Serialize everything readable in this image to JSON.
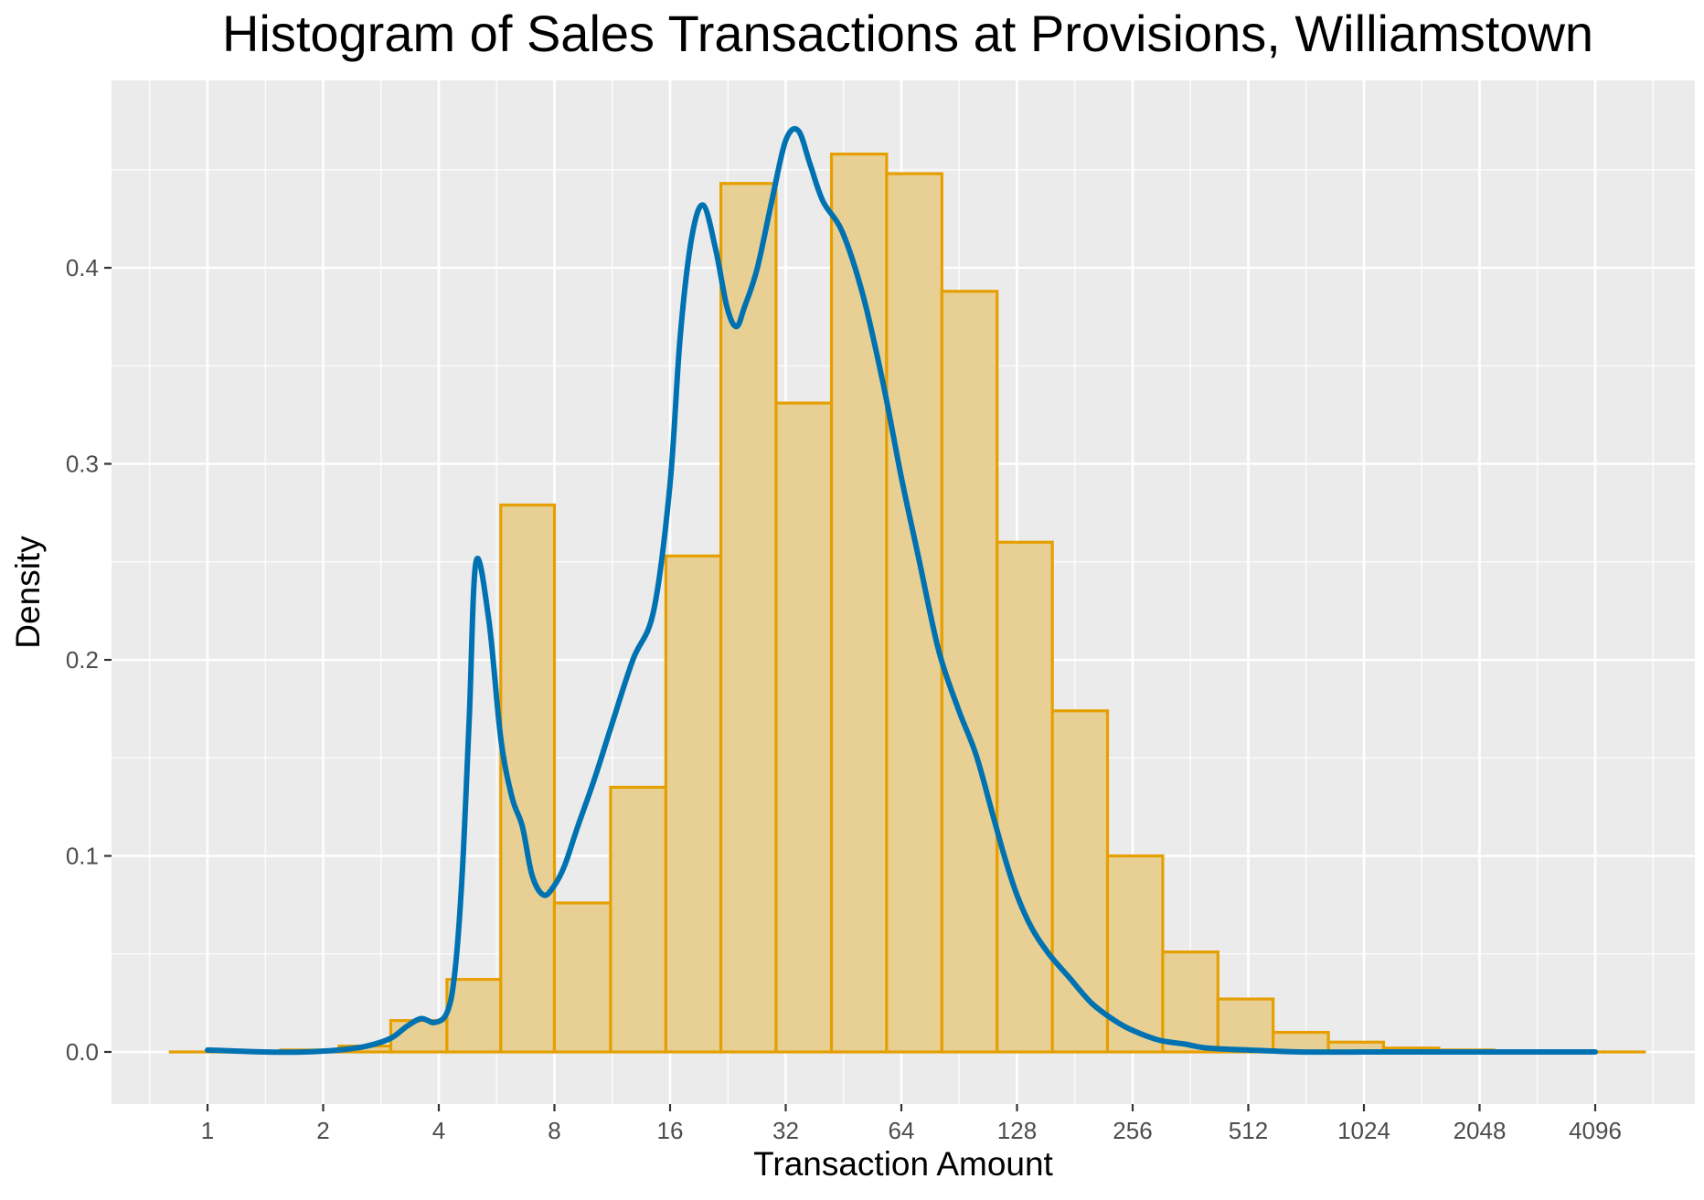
{
  "chart_data": {
    "type": "bar",
    "title": "Histogram of Sales Transactions at Provisions, Williamstown",
    "xlabel": "Transaction Amount",
    "ylabel": "Density",
    "x_scale": "log2",
    "x_ticks": [
      "1",
      "2",
      "4",
      "8",
      "16",
      "32",
      "64",
      "128",
      "256",
      "512",
      "1024",
      "2048",
      "4096"
    ],
    "y_ticks": [
      "0.0",
      "0.1",
      "0.2",
      "0.3",
      "0.4"
    ],
    "ylim": [
      0,
      0.48
    ],
    "grid": true,
    "series": [
      {
        "type": "bar",
        "bins": [
          {
            "start": 0.8,
            "end": 1.1,
            "density": 0.0
          },
          {
            "start": 1.1,
            "end": 1.55,
            "density": 0.0
          },
          {
            "start": 1.55,
            "end": 2.2,
            "density": 0.001
          },
          {
            "start": 2.2,
            "end": 3.0,
            "density": 0.003
          },
          {
            "start": 3.0,
            "end": 4.2,
            "density": 0.016
          },
          {
            "start": 4.2,
            "end": 5.8,
            "density": 0.037
          },
          {
            "start": 5.8,
            "end": 8.0,
            "density": 0.279
          },
          {
            "start": 8.0,
            "end": 11.2,
            "density": 0.076
          },
          {
            "start": 11.2,
            "end": 15.6,
            "density": 0.135
          },
          {
            "start": 15.6,
            "end": 21.7,
            "density": 0.253
          },
          {
            "start": 21.7,
            "end": 30.2,
            "density": 0.443
          },
          {
            "start": 30.2,
            "end": 42.1,
            "density": 0.331
          },
          {
            "start": 42.1,
            "end": 58.6,
            "density": 0.458
          },
          {
            "start": 58.6,
            "end": 81.6,
            "density": 0.448
          },
          {
            "start": 81.6,
            "end": 113.6,
            "density": 0.388
          },
          {
            "start": 113.6,
            "end": 158.2,
            "density": 0.26
          },
          {
            "start": 158.2,
            "end": 220.2,
            "density": 0.174
          },
          {
            "start": 220.2,
            "end": 306.6,
            "density": 0.1
          },
          {
            "start": 306.6,
            "end": 426.8,
            "density": 0.051
          },
          {
            "start": 426.8,
            "end": 594.2,
            "density": 0.027
          },
          {
            "start": 594.2,
            "end": 827.3,
            "density": 0.01
          },
          {
            "start": 827.3,
            "end": 1151.8,
            "density": 0.005
          },
          {
            "start": 1151.8,
            "end": 1603.6,
            "density": 0.002
          },
          {
            "start": 1603.6,
            "end": 2232.6,
            "density": 0.001
          },
          {
            "start": 2232.6,
            "end": 3108.3,
            "density": 0.0
          },
          {
            "start": 3108.3,
            "end": 4327.6,
            "density": 0.0
          },
          {
            "start": 4327.6,
            "end": 5500.0,
            "density": 0.0
          }
        ],
        "fill": "#e8d095",
        "stroke": "#e69f00"
      },
      {
        "type": "line",
        "kind": "density curve",
        "x": [
          1,
          1.4,
          1.8,
          2.2,
          2.6,
          3.0,
          3.3,
          3.6,
          3.9,
          4.2,
          4.4,
          4.6,
          4.8,
          5.0,
          5.4,
          5.8,
          6.2,
          6.6,
          7.0,
          7.5,
          8.0,
          8.5,
          9.2,
          10.2,
          11.2,
          12.8,
          14.5,
          16.0,
          17.0,
          18.2,
          19.5,
          21.0,
          22.5,
          23.8,
          25.0,
          27.0,
          29.5,
          32.0,
          34.5,
          37.0,
          40.0,
          45.0,
          51.0,
          57.5,
          64.0,
          71.0,
          80.0,
          90.0,
          100.0,
          110.0,
          119.0,
          128.0,
          140.0,
          155.0,
          175.0,
          200.0,
          230.0,
          256.0,
          300.0,
          350.0,
          400.0,
          512.0,
          700.0,
          1024.0,
          1400.0,
          2048.0,
          3000.0,
          4096.0
        ],
        "y": [
          0.001,
          0.0,
          0.0,
          0.001,
          0.003,
          0.007,
          0.013,
          0.017,
          0.015,
          0.02,
          0.04,
          0.09,
          0.17,
          0.25,
          0.22,
          0.16,
          0.13,
          0.115,
          0.09,
          0.08,
          0.085,
          0.095,
          0.115,
          0.14,
          0.165,
          0.2,
          0.225,
          0.29,
          0.365,
          0.415,
          0.432,
          0.41,
          0.38,
          0.37,
          0.38,
          0.4,
          0.435,
          0.465,
          0.47,
          0.453,
          0.434,
          0.418,
          0.385,
          0.34,
          0.293,
          0.252,
          0.205,
          0.175,
          0.152,
          0.123,
          0.099,
          0.08,
          0.063,
          0.05,
          0.038,
          0.025,
          0.016,
          0.011,
          0.006,
          0.004,
          0.002,
          0.001,
          0.0,
          0.0,
          0.0,
          0.0,
          0.0,
          0.0
        ],
        "color": "#0072b2"
      }
    ]
  }
}
